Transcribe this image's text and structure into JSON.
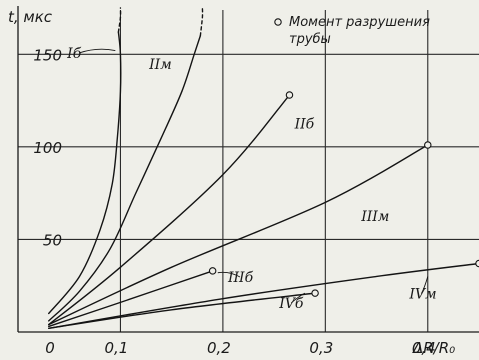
{
  "chart_data": {
    "type": "line",
    "title": "",
    "xlabel": "ΔR/R₀",
    "ylabel": "t, мкс",
    "xlim": [
      0,
      0.45
    ],
    "ylim": [
      0,
      175
    ],
    "x_ticks": [
      {
        "value": 0,
        "label": "0"
      },
      {
        "value": 0.1,
        "label": "0,1"
      },
      {
        "value": 0.2,
        "label": "0,2"
      },
      {
        "value": 0.3,
        "label": "0,3"
      },
      {
        "value": 0.4,
        "label": "0,4"
      }
    ],
    "y_ticks": [
      {
        "value": 50,
        "label": "50"
      },
      {
        "value": 100,
        "label": "100"
      },
      {
        "value": 150,
        "label": "150"
      }
    ],
    "grid_x": [
      0.1,
      0.2,
      0.3,
      0.4
    ],
    "grid_y": [
      50,
      100,
      150
    ],
    "grid": true,
    "legend": {
      "text_line1": "Момент разрушения",
      "text_line2": "трубы",
      "marker": "open-circle",
      "placement": "top-right"
    },
    "series": [
      {
        "name": "Iб",
        "end_marker": false,
        "dashed_top": true,
        "label_at": [
          0.048,
          148
        ],
        "leader_to": [
          0.095,
          152
        ],
        "points": [
          [
            0.03,
            10
          ],
          [
            0.06,
            30
          ],
          [
            0.08,
            55
          ],
          [
            0.092,
            80
          ],
          [
            0.097,
            105
          ],
          [
            0.1,
            130
          ],
          [
            0.1,
            150
          ],
          [
            0.098,
            162
          ]
        ],
        "dashed": [
          [
            0.098,
            162
          ],
          [
            0.1,
            170
          ],
          [
            0.1,
            175
          ]
        ]
      },
      {
        "name": "IIм",
        "end_marker": false,
        "dashed_top": true,
        "label_at": [
          0.128,
          142
        ],
        "leader_to": null,
        "points": [
          [
            0.03,
            6
          ],
          [
            0.06,
            22
          ],
          [
            0.09,
            45
          ],
          [
            0.115,
            75
          ],
          [
            0.14,
            105
          ],
          [
            0.16,
            130
          ],
          [
            0.172,
            150
          ],
          [
            0.178,
            160
          ]
        ],
        "dashed": [
          [
            0.178,
            160
          ],
          [
            0.18,
            170
          ],
          [
            0.18,
            175
          ]
        ]
      },
      {
        "name": "IIб",
        "end_marker": true,
        "dashed_top": false,
        "label_at": [
          0.27,
          110
        ],
        "leader_to": null,
        "points": [
          [
            0.03,
            4
          ],
          [
            0.1,
            35
          ],
          [
            0.2,
            85
          ],
          [
            0.265,
            128
          ]
        ],
        "dashed": []
      },
      {
        "name": "IIIм",
        "end_marker": true,
        "dashed_top": false,
        "label_at": [
          0.335,
          60
        ],
        "leader_to": null,
        "points": [
          [
            0.03,
            4
          ],
          [
            0.15,
            35
          ],
          [
            0.3,
            70
          ],
          [
            0.4,
            101
          ]
        ],
        "dashed": []
      },
      {
        "name": "IIIб",
        "end_marker": true,
        "dashed_top": false,
        "label_at": [
          0.205,
          27
        ],
        "leader_to": [
          0.195,
          32
        ],
        "points": [
          [
            0.03,
            3
          ],
          [
            0.1,
            16
          ],
          [
            0.19,
            33
          ]
        ],
        "dashed": []
      },
      {
        "name": "IVб",
        "end_marker": true,
        "dashed_top": false,
        "label_at": [
          0.255,
          13
        ],
        "leader_to": [
          0.28,
          21
        ],
        "points": [
          [
            0.03,
            2
          ],
          [
            0.15,
            12
          ],
          [
            0.29,
            21
          ]
        ],
        "dashed": []
      },
      {
        "name": "IVм",
        "end_marker": true,
        "dashed_top": false,
        "label_at": [
          0.382,
          18
        ],
        "leader_to": [
          0.4,
          30
        ],
        "points": [
          [
            0.03,
            2
          ],
          [
            0.2,
            18
          ],
          [
            0.35,
            30
          ],
          [
            0.45,
            37
          ]
        ],
        "dashed": []
      }
    ]
  }
}
